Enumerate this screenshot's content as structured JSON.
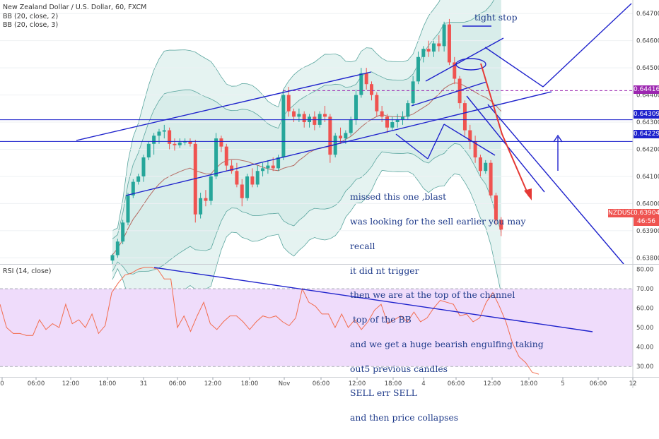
{
  "header": {
    "title": "New Zealand Dollar / U.S. Dollar, 60, FXCM",
    "indicator1": "BB (20, close, 2)",
    "indicator2": "BB (20, close, 3)",
    "rsi_label": "RSI (14, close)"
  },
  "annotations": {
    "tight_stop": "tight stop",
    "note_lines": [
      "missed this one ,blast",
      "was looking for the sell earlier you may",
      "recall",
      "it did nt trigger",
      "then we are at the top of the channel",
      " top of the BB",
      "and we get a huge bearish engulfing taking",
      "out5 previous candles",
      "SELL err SELL",
      "and then price collapses"
    ]
  },
  "price_tags": {
    "symbol": "NZDUSD",
    "last": "0.63904",
    "countdown": "46:56",
    "level_1": "0.64416",
    "level_2": "0.64309",
    "level_3": "0.64229"
  },
  "colors": {
    "up": "#26a69a",
    "down": "#ef5350",
    "bb_fill": "#cfe9e6",
    "bb_line": "#5ba69f",
    "drawing": "#1e22cc",
    "red_arrow": "#e53935",
    "rsi_band": "#efdcfb",
    "rsi_line": "#f26d4f",
    "sma": "#b56b63",
    "dash": "#9c27b0"
  },
  "chart_data": [
    {
      "type": "candlestick",
      "title": "New Zealand Dollar / U.S. Dollar, 60, FXCM",
      "ylim": [
        0.6378,
        0.6475
      ],
      "y_ticks": [
        "0.64700",
        "0.64600",
        "0.64500",
        "0.64400",
        "0.64300",
        "0.64200",
        "0.64100",
        "0.64000",
        "0.63900",
        "0.63800"
      ],
      "x_ticks": [
        "0",
        "06:00",
        "12:00",
        "18:00",
        "31",
        "06:00",
        "12:00",
        "18:00",
        "Nov",
        "06:00",
        "12:00",
        "18:00",
        "4",
        "06:00",
        "12:00",
        "18:00",
        "5",
        "06:00",
        "12"
      ],
      "candles": [
        [
          0.6379,
          0.63815,
          0.63775,
          0.6381
        ],
        [
          0.6381,
          0.6387,
          0.638,
          0.6386
        ],
        [
          0.6386,
          0.6394,
          0.6385,
          0.6393
        ],
        [
          0.6393,
          0.6404,
          0.6392,
          0.6403
        ],
        [
          0.6403,
          0.6409,
          0.6402,
          0.6408
        ],
        [
          0.6408,
          0.6411,
          0.6407,
          0.641
        ],
        [
          0.641,
          0.6418,
          0.6408,
          0.6417
        ],
        [
          0.6417,
          0.6423,
          0.6416,
          0.6422
        ],
        [
          0.6422,
          0.6426,
          0.6418,
          0.6425
        ],
        [
          0.6425,
          0.64275,
          0.6422,
          0.64265
        ],
        [
          0.64265,
          0.6429,
          0.6424,
          0.6427
        ],
        [
          0.6427,
          0.6428,
          0.642,
          0.6422
        ],
        [
          0.6422,
          0.6424,
          0.64195,
          0.64215
        ],
        [
          0.64215,
          0.6424,
          0.64205,
          0.64225
        ],
        [
          0.64225,
          0.6424,
          0.64215,
          0.6423
        ],
        [
          0.6423,
          0.6424,
          0.6421,
          0.6422
        ],
        [
          0.6422,
          0.64235,
          0.6393,
          0.6396
        ],
        [
          0.6396,
          0.6404,
          0.63945,
          0.6402
        ],
        [
          0.6402,
          0.6405,
          0.6399,
          0.6401
        ],
        [
          0.6401,
          0.6411,
          0.63995,
          0.641
        ],
        [
          0.641,
          0.6426,
          0.6409,
          0.6424
        ],
        [
          0.6424,
          0.6425,
          0.6419,
          0.6421
        ],
        [
          0.6421,
          0.6422,
          0.6412,
          0.6414
        ],
        [
          0.6414,
          0.6416,
          0.6411,
          0.6412
        ],
        [
          0.6412,
          0.6415,
          0.6406,
          0.6407
        ],
        [
          0.6407,
          0.6409,
          0.6399,
          0.6402
        ],
        [
          0.6402,
          0.6411,
          0.6401,
          0.641
        ],
        [
          0.641,
          0.6413,
          0.6406,
          0.6407
        ],
        [
          0.6407,
          0.6414,
          0.6406,
          0.6412
        ],
        [
          0.6412,
          0.6415,
          0.641,
          0.6413
        ],
        [
          0.6413,
          0.6416,
          0.6411,
          0.6414
        ],
        [
          0.6414,
          0.6417,
          0.6412,
          0.6413
        ],
        [
          0.6413,
          0.6418,
          0.6412,
          0.6417
        ],
        [
          0.6417,
          0.6442,
          0.6416,
          0.644
        ],
        [
          0.644,
          0.6443,
          0.6432,
          0.6434
        ],
        [
          0.6434,
          0.6435,
          0.643,
          0.6432
        ],
        [
          0.6432,
          0.6435,
          0.643,
          0.6433
        ],
        [
          0.6433,
          0.6434,
          0.6428,
          0.643
        ],
        [
          0.643,
          0.6433,
          0.6428,
          0.6432
        ],
        [
          0.6432,
          0.6434,
          0.6427,
          0.6429
        ],
        [
          0.6429,
          0.6434,
          0.6428,
          0.6433
        ],
        [
          0.6433,
          0.6436,
          0.643,
          0.6432
        ],
        [
          0.6432,
          0.6433,
          0.6415,
          0.6418
        ],
        [
          0.6418,
          0.6426,
          0.6417,
          0.6425
        ],
        [
          0.6425,
          0.6428,
          0.6422,
          0.6424
        ],
        [
          0.6424,
          0.6427,
          0.6422,
          0.6426
        ],
        [
          0.6426,
          0.6432,
          0.6425,
          0.6431
        ],
        [
          0.6431,
          0.6442,
          0.6429,
          0.644
        ],
        [
          0.644,
          0.645,
          0.6439,
          0.6448
        ],
        [
          0.6448,
          0.645,
          0.6442,
          0.6444
        ],
        [
          0.6444,
          0.6445,
          0.6438,
          0.644
        ],
        [
          0.644,
          0.6441,
          0.6432,
          0.6434
        ],
        [
          0.6434,
          0.6436,
          0.643,
          0.6432
        ],
        [
          0.6432,
          0.6433,
          0.6426,
          0.6428
        ],
        [
          0.6428,
          0.6432,
          0.6427,
          0.643
        ],
        [
          0.643,
          0.6433,
          0.6428,
          0.6431
        ],
        [
          0.6431,
          0.6434,
          0.6429,
          0.6432
        ],
        [
          0.6432,
          0.6438,
          0.6431,
          0.6437
        ],
        [
          0.6437,
          0.6447,
          0.6436,
          0.6445
        ],
        [
          0.6445,
          0.6456,
          0.6444,
          0.6454
        ],
        [
          0.6454,
          0.6458,
          0.6452,
          0.6457
        ],
        [
          0.6457,
          0.646,
          0.6454,
          0.6456
        ],
        [
          0.6456,
          0.646,
          0.6454,
          0.6459
        ],
        [
          0.6459,
          0.6462,
          0.6456,
          0.6458
        ],
        [
          0.6458,
          0.6467,
          0.6456,
          0.6466
        ],
        [
          0.6466,
          0.6468,
          0.6451,
          0.6452
        ],
        [
          0.6452,
          0.6454,
          0.6444,
          0.6446
        ],
        [
          0.6446,
          0.6447,
          0.6435,
          0.6437
        ],
        [
          0.6437,
          0.6438,
          0.6425,
          0.6427
        ],
        [
          0.6427,
          0.6429,
          0.642,
          0.6423
        ],
        [
          0.6423,
          0.6425,
          0.6415,
          0.6417
        ],
        [
          0.6417,
          0.6418,
          0.641,
          0.6412
        ],
        [
          0.6412,
          0.6416,
          0.6411,
          0.6415
        ],
        [
          0.6415,
          0.6416,
          0.6402,
          0.6403
        ],
        [
          0.6403,
          0.6404,
          0.6392,
          0.6394
        ],
        [
          0.6394,
          0.6395,
          0.6388,
          0.63904
        ]
      ]
    },
    {
      "type": "line",
      "title": "RSI (14, close)",
      "ylim": [
        25,
        82
      ],
      "y_ticks": [
        "80.00",
        "70.00",
        "60.00",
        "50.00",
        "40.00",
        "30.00"
      ],
      "band": [
        30,
        70
      ],
      "values": [
        62,
        50,
        47,
        47,
        46,
        46,
        54,
        49,
        52,
        50,
        62,
        52,
        54,
        50,
        57,
        47,
        51,
        68,
        73,
        77,
        78,
        80,
        81,
        81,
        80,
        75,
        75,
        50,
        56,
        48,
        56,
        63,
        52,
        49,
        53,
        56,
        56,
        53,
        49,
        53,
        56,
        55,
        56,
        53,
        51,
        55,
        70,
        63,
        61,
        57,
        57,
        50,
        57,
        50,
        54,
        49,
        53,
        59,
        62,
        52,
        54,
        56,
        53,
        58,
        53,
        55,
        60,
        64,
        63,
        62,
        56,
        57,
        53,
        55,
        63,
        68,
        61,
        53,
        42,
        35,
        32,
        27,
        26
      ]
    }
  ]
}
